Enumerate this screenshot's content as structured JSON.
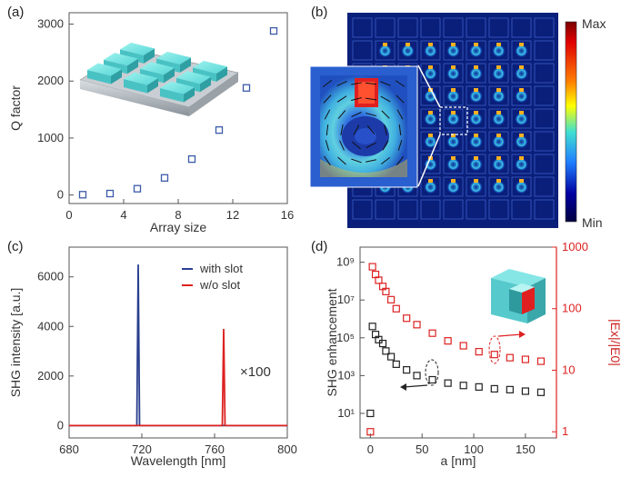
{
  "chart_data": [
    {
      "panel": "(a)",
      "type": "scatter",
      "title": "",
      "xlabel": "Array size",
      "ylabel": "Q factor",
      "xlim": [
        0,
        16
      ],
      "ylim": [
        -150,
        3200
      ],
      "xticks": [
        "0",
        "4",
        "8",
        "12",
        "16"
      ],
      "yticks": [
        "0",
        "1000",
        "2000",
        "3000"
      ],
      "marker_color": "#3a5aa8",
      "x": [
        1,
        3,
        5,
        7,
        9,
        11,
        13,
        15
      ],
      "y": [
        5,
        25,
        110,
        300,
        630,
        1140,
        1880,
        2880
      ],
      "inset": "cuboid-metasurface-array-3d"
    },
    {
      "panel": "(b)",
      "type": "heatmap",
      "title": "",
      "colorbar_labels": [
        "Max",
        "Min"
      ],
      "colormap": [
        "#7a0000",
        "#e00000",
        "#ff8000",
        "#ffff00",
        "#40e0d0",
        "#2080ff",
        "#0000a0",
        "#000040"
      ],
      "grid": [
        9,
        9
      ],
      "inset": "near-field-vortex-zoom"
    },
    {
      "panel": "(c)",
      "type": "line",
      "title": "",
      "xlabel": "Wavelength [nm]",
      "ylabel": "SHG intensity [a.u.]",
      "xlim": [
        680,
        800
      ],
      "ylim": [
        -500,
        7200
      ],
      "xticks": [
        "680",
        "720",
        "760",
        "800"
      ],
      "yticks": [
        "0",
        "2000",
        "4000",
        "6000"
      ],
      "legend_position": "top-right",
      "annotation": "×100",
      "series": [
        {
          "name": "with slot",
          "color": "#2a3f8f",
          "peak_x": 718,
          "peak_y": 6500
        },
        {
          "name": "w/o slot",
          "color": "#dd2222",
          "peak_x": 765,
          "peak_y": 3900
        }
      ]
    },
    {
      "panel": "(d)",
      "type": "scatter",
      "title": "",
      "xlabel": "a [nm]",
      "ylabel_left": "SHG enhancement",
      "ylabel_right": "|Ex|/|E0|",
      "xlim": [
        -10,
        180
      ],
      "xticks": [
        "0",
        "50",
        "100",
        "150"
      ],
      "yticks_left": [
        "10¹",
        "10³",
        "10⁵",
        "10⁷",
        "10⁹"
      ],
      "yticks_right": [
        "1",
        "10",
        "100",
        "1000"
      ],
      "log_scale_y": true,
      "left_color": "#222222",
      "right_color": "#dd2222",
      "x_left": [
        0,
        2,
        5,
        8,
        12,
        15,
        20,
        25,
        35,
        45,
        60,
        75,
        90,
        105,
        120,
        135,
        150,
        165
      ],
      "y_left": [
        10,
        400000,
        150000,
        80000,
        50000,
        20000,
        10000,
        4000,
        2000,
        1000,
        600,
        400,
        300,
        250,
        200,
        180,
        150,
        130
      ],
      "x_right": [
        0,
        2,
        5,
        8,
        12,
        15,
        20,
        25,
        35,
        45,
        60,
        75,
        90,
        105,
        120,
        135,
        150,
        165
      ],
      "y_right": [
        1,
        480,
        360,
        290,
        230,
        190,
        140,
        100,
        70,
        55,
        40,
        30,
        25,
        20,
        18,
        16,
        15,
        14
      ],
      "inset": "slotted-cuboid-3d"
    }
  ]
}
